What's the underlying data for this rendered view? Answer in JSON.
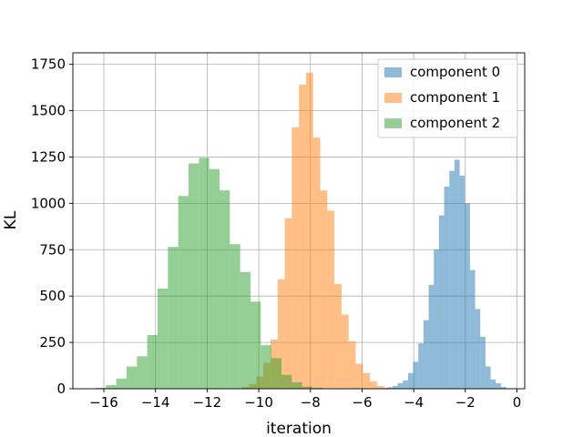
{
  "chart_data": {
    "type": "histogram",
    "xlabel": "iteration",
    "ylabel": "KL",
    "xlim": [
      -17.2,
      0.3
    ],
    "ylim": [
      0,
      1812
    ],
    "xticks": [
      -16,
      -14,
      -12,
      -10,
      -8,
      -6,
      -4,
      -2,
      0
    ],
    "yticks": [
      0,
      250,
      500,
      750,
      1000,
      1250,
      1500,
      1750
    ],
    "grid": true,
    "legend_position": "top-right",
    "series": [
      {
        "name": "component 0",
        "color": "#1f77b4",
        "opacity": 0.5,
        "bin_start": -5.22,
        "bin_width": 0.2,
        "counts": [
          3,
          8,
          15,
          30,
          45,
          85,
          145,
          245,
          370,
          560,
          750,
          935,
          1090,
          1175,
          1235,
          1150,
          1000,
          640,
          430,
          280,
          120,
          50,
          30,
          10,
          2
        ]
      },
      {
        "name": "component 1",
        "color": "#ff7f0e",
        "opacity": 0.5,
        "bin_start": -10.92,
        "bin_width": 0.275,
        "counts": [
          3,
          10,
          25,
          65,
          140,
          265,
          590,
          920,
          1410,
          1640,
          1705,
          1355,
          1070,
          960,
          565,
          400,
          255,
          135,
          85,
          40,
          15,
          5
        ]
      },
      {
        "name": "component 2",
        "color": "#2ca02c",
        "opacity": 0.5,
        "bin_start": -16.32,
        "bin_width": 0.4,
        "counts": [
          5,
          20,
          55,
          120,
          175,
          290,
          540,
          765,
          1040,
          1215,
          1245,
          1185,
          1070,
          780,
          630,
          470,
          235,
          165,
          75,
          35,
          12,
          5
        ]
      }
    ]
  }
}
